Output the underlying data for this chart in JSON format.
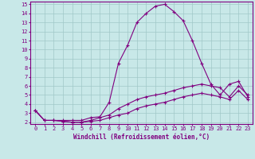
{
  "xlabel": "Windchill (Refroidissement éolien,°C)",
  "x_values": [
    0,
    1,
    2,
    3,
    4,
    5,
    6,
    7,
    8,
    9,
    10,
    11,
    12,
    13,
    14,
    15,
    16,
    17,
    18,
    19,
    20,
    21,
    22,
    23
  ],
  "series": [
    [
      3.3,
      2.2,
      2.2,
      2.2,
      2.2,
      2.2,
      2.5,
      2.6,
      4.2,
      8.5,
      10.5,
      13.0,
      14.0,
      14.8,
      15.0,
      14.2,
      13.2,
      11.0,
      8.5,
      6.2,
      5.0,
      6.2,
      6.5,
      4.8
    ],
    [
      3.3,
      2.2,
      2.2,
      2.1,
      2.0,
      2.0,
      2.2,
      2.5,
      2.8,
      3.5,
      4.0,
      4.5,
      4.8,
      5.0,
      5.2,
      5.5,
      5.8,
      6.0,
      6.2,
      6.0,
      5.8,
      4.8,
      6.0,
      5.0
    ],
    [
      3.3,
      2.2,
      2.2,
      2.1,
      2.0,
      2.0,
      2.1,
      2.2,
      2.5,
      2.8,
      3.0,
      3.5,
      3.8,
      4.0,
      4.2,
      4.5,
      4.8,
      5.0,
      5.2,
      5.0,
      4.8,
      4.5,
      5.5,
      4.5
    ]
  ],
  "line_color": "#800080",
  "marker": "+",
  "bg_color": "#c8e8e8",
  "grid_color": "#a0c8c8",
  "ylim": [
    2,
    15
  ],
  "xlim": [
    0,
    23
  ],
  "yticks": [
    2,
    3,
    4,
    5,
    6,
    7,
    8,
    9,
    10,
    11,
    12,
    13,
    14,
    15
  ],
  "xticks": [
    0,
    1,
    2,
    3,
    4,
    5,
    6,
    7,
    8,
    9,
    10,
    11,
    12,
    13,
    14,
    15,
    16,
    17,
    18,
    19,
    20,
    21,
    22,
    23
  ],
  "axis_color": "#800080",
  "tick_label_color": "#800080",
  "xlabel_color": "#800080",
  "label_fontsize": 5.5,
  "tick_fontsize": 5.0
}
